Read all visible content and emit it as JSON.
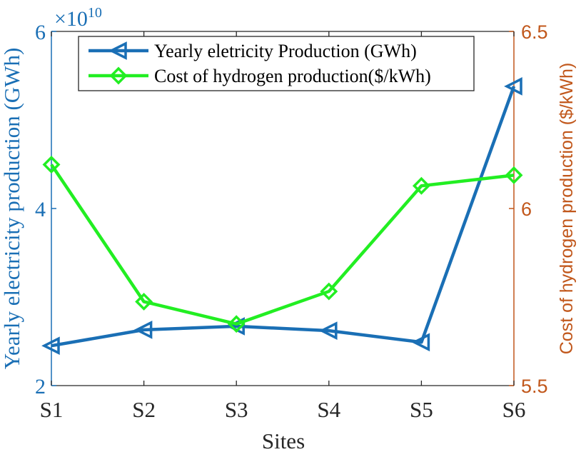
{
  "chart_data": {
    "type": "line",
    "xlabel": "Sites",
    "categories": [
      "S1",
      "S2",
      "S3",
      "S4",
      "S5",
      "S6"
    ],
    "y_left": {
      "label": "Yearly electricity production (GWh)",
      "exponent_label": "×10",
      "exponent_power": "10",
      "ylim": [
        2,
        6
      ],
      "ticks": [
        2,
        4,
        6
      ],
      "tick_labels": [
        "2",
        "4",
        "6"
      ],
      "color": "#1a6fb5"
    },
    "y_right": {
      "label": "Cost of hydrogen production ($/kWh)",
      "ylim": [
        5.5,
        6.5
      ],
      "ticks": [
        5.5,
        6,
        6.5
      ],
      "tick_labels": [
        "5.5",
        "6",
        "6.5"
      ],
      "color": "#c1571b"
    },
    "series": [
      {
        "name": "Yearly eletricity Production (GWh)",
        "axis": "left",
        "marker": "triangle-left",
        "color": "#1a6fb5",
        "values": [
          2.45,
          2.63,
          2.67,
          2.62,
          2.49,
          5.38
        ]
      },
      {
        "name": "Cost of hydrogen production($/kWh)",
        "axis": "right",
        "marker": "diamond",
        "color": "#22ee22",
        "values": [
          6.124,
          5.737,
          5.674,
          5.766,
          6.064,
          6.094
        ]
      }
    ],
    "legend_position": "top-left",
    "grid": false
  }
}
